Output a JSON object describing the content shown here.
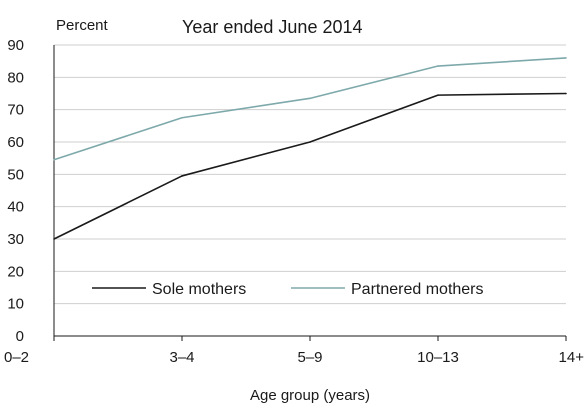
{
  "chart_data": {
    "type": "line",
    "title": "Year ended June 2014",
    "ylabel": "Percent",
    "xlabel": "Age group (years)",
    "categories": [
      "0–2",
      "3–4",
      "5–9",
      "10–13",
      "14+"
    ],
    "ylim": [
      0,
      90
    ],
    "yticks": [
      0,
      10,
      20,
      30,
      40,
      50,
      60,
      70,
      80,
      90
    ],
    "grid": true,
    "legend_position": "bottom-inside",
    "series": [
      {
        "name": "Sole mothers",
        "color": "#1a1a1a",
        "values": [
          30,
          49.5,
          60,
          74.5,
          75
        ]
      },
      {
        "name": "Partnered mothers",
        "color": "#7ea9ab",
        "values": [
          54.5,
          67.5,
          73.5,
          83.5,
          86
        ]
      }
    ]
  }
}
